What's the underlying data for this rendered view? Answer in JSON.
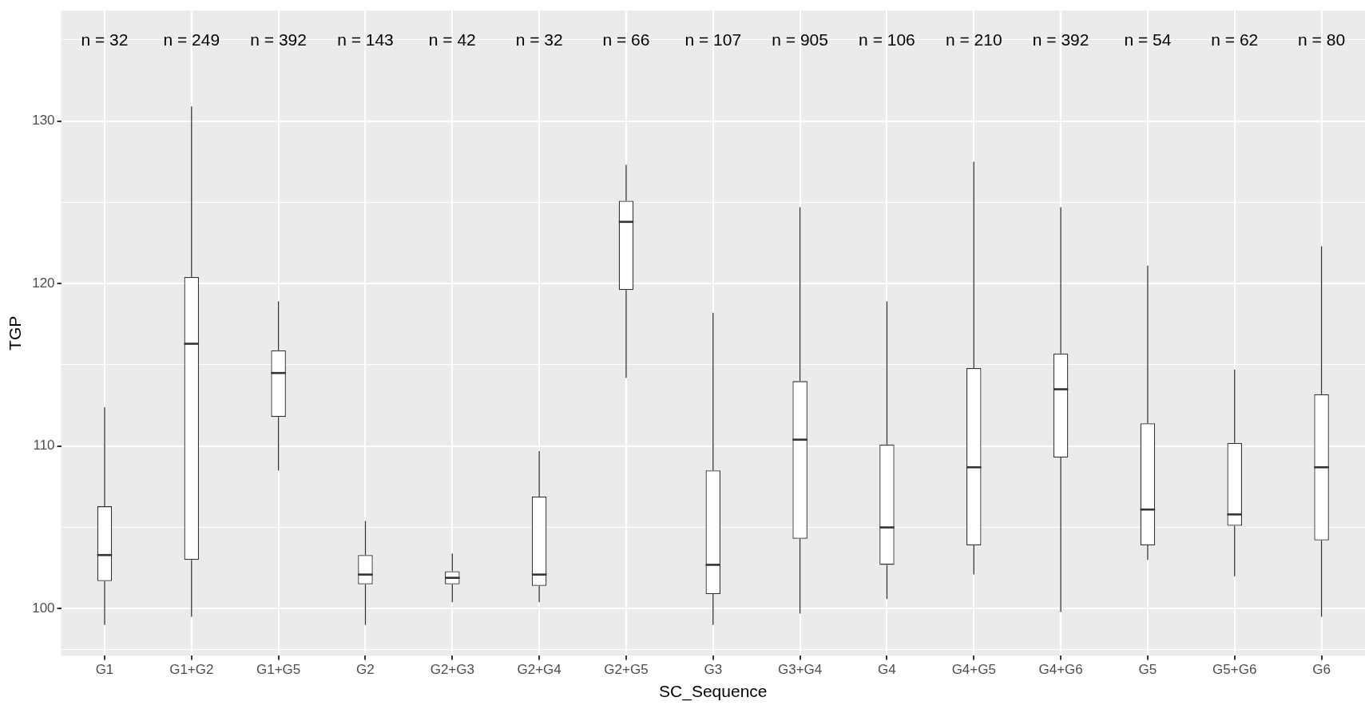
{
  "chart_data": {
    "type": "box",
    "xlabel": "SC_Sequence",
    "ylabel": "TGP",
    "categories": [
      "G1",
      "G1+G2",
      "G1+G5",
      "G2",
      "G2+G3",
      "G2+G4",
      "G2+G5",
      "G3",
      "G3+G4",
      "G4",
      "G4+G5",
      "G4+G6",
      "G5",
      "G5+G6",
      "G6"
    ],
    "boxes": [
      {
        "low": 99.0,
        "q1": 101.7,
        "median": 103.3,
        "q3": 106.3,
        "high": 112.4
      },
      {
        "low": 99.5,
        "q1": 103.0,
        "median": 116.3,
        "q3": 120.4,
        "high": 130.9
      },
      {
        "low": 108.5,
        "q1": 111.8,
        "median": 114.5,
        "q3": 115.9,
        "high": 118.9
      },
      {
        "low": 99.0,
        "q1": 101.5,
        "median": 102.1,
        "q3": 103.3,
        "high": 105.4
      },
      {
        "low": 100.4,
        "q1": 101.5,
        "median": 101.9,
        "q3": 102.3,
        "high": 103.4
      },
      {
        "low": 100.4,
        "q1": 101.4,
        "median": 102.1,
        "q3": 106.9,
        "high": 109.7
      },
      {
        "low": 114.2,
        "q1": 119.6,
        "median": 123.8,
        "q3": 125.1,
        "high": 127.3
      },
      {
        "low": 99.0,
        "q1": 100.9,
        "median": 102.7,
        "q3": 108.5,
        "high": 118.2
      },
      {
        "low": 99.7,
        "q1": 104.3,
        "median": 110.4,
        "q3": 114.0,
        "high": 124.7
      },
      {
        "low": 100.6,
        "q1": 102.7,
        "median": 105.0,
        "q3": 110.1,
        "high": 118.9
      },
      {
        "low": 102.1,
        "q1": 103.9,
        "median": 108.7,
        "q3": 114.8,
        "high": 127.5
      },
      {
        "low": 99.8,
        "q1": 109.3,
        "median": 113.5,
        "q3": 115.7,
        "high": 124.7
      },
      {
        "low": 103.0,
        "q1": 103.9,
        "median": 106.1,
        "q3": 111.4,
        "high": 121.1
      },
      {
        "low": 102.0,
        "q1": 105.1,
        "median": 105.8,
        "q3": 110.2,
        "high": 114.7
      },
      {
        "low": 99.5,
        "q1": 104.2,
        "median": 108.7,
        "q3": 113.2,
        "high": 122.3
      }
    ],
    "color": "#333333",
    "ylim": [
      97.1,
      136.8
    ],
    "yticks": [
      {
        "value": 97.5,
        "label": null
      },
      100,
      {
        "value": 105,
        "label": null
      },
      110,
      {
        "value": 115,
        "label": null
      },
      120,
      {
        "value": 125,
        "label": null
      },
      130,
      {
        "value": 135,
        "label": null
      }
    ],
    "grid": true,
    "annotations": [
      "n = 32",
      "n = 249",
      "n = 392",
      "n = 143",
      "n = 42",
      "n = 32",
      "n = 66",
      "n = 107",
      "n = 905",
      "n = 106",
      "n = 210",
      "n = 392",
      "n = 54",
      "n = 62",
      "n = 80"
    ]
  }
}
